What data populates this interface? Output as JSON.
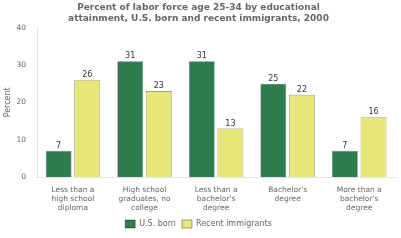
{
  "chart_data": {
    "type": "bar",
    "title": "Percent of labor force age 25-34 by educational\nattainment, U.S. born and recent immigrants, 2000",
    "categories": [
      "Less than a\nhigh school\ndiploma",
      "High school\ngraduates, no\ncollege",
      "Less than a\nbachelor's\ndegree",
      "Bachelor's\ndegree",
      "More than a\nbachelor's\ndegree"
    ],
    "series": [
      {
        "name": "U.S. born",
        "color": "#2E7D4F",
        "values": [
          7,
          31,
          31,
          25,
          7
        ]
      },
      {
        "name": "Recent immigrants",
        "color": "#E8E87A",
        "values": [
          26,
          23,
          13,
          22,
          16
        ]
      }
    ],
    "ylabel": "Percent",
    "ylim": [
      0,
      40
    ],
    "yticks": [
      0,
      10,
      20,
      30,
      40
    ],
    "grid": false,
    "legend": "bottom",
    "data_labels": true
  }
}
